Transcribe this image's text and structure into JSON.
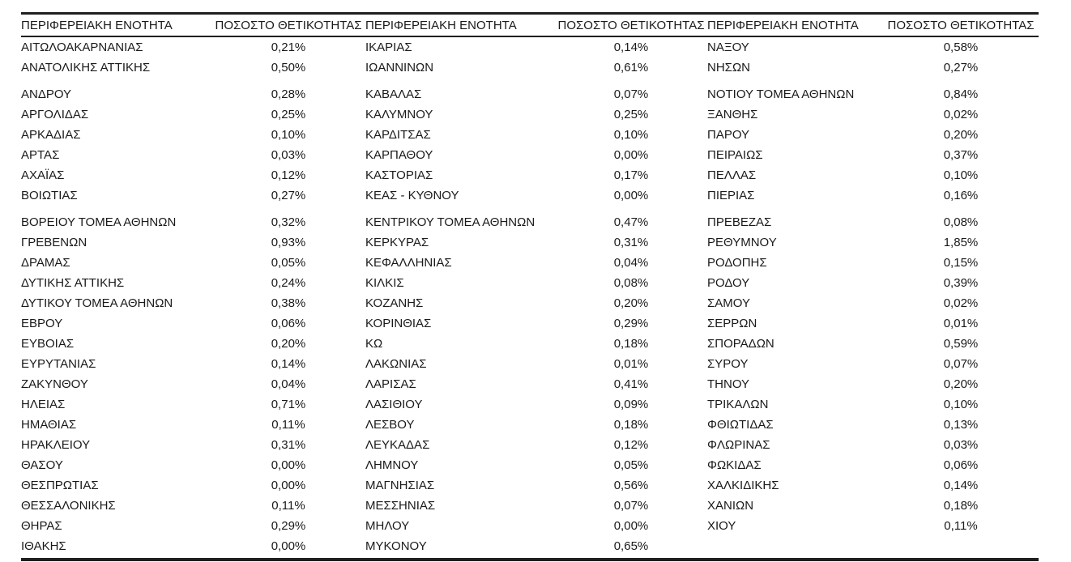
{
  "table": {
    "header": {
      "region": "ΠΕΡΙΦΕΡΕΙΑΚΗ ΕΝΟΤΗΤΑ",
      "value": "ΠΟΣΟΣΤΟ ΘΕΤΙΚΟΤΗΤΑΣ"
    },
    "gap_rows": [
      2,
      8
    ],
    "columns": [
      {
        "rows": [
          {
            "region": "ΑΙΤΩΛΟΑΚΑΡΝΑΝΙΑΣ",
            "value": "0,21%"
          },
          {
            "region": "ΑΝΑΤΟΛΙΚΗΣ ΑΤΤΙΚΗΣ",
            "value": "0,50%"
          },
          {
            "region": "ΑΝΔΡΟΥ",
            "value": "0,28%"
          },
          {
            "region": "ΑΡΓΟΛΙΔΑΣ",
            "value": "0,25%"
          },
          {
            "region": "ΑΡΚΑΔΙΑΣ",
            "value": "0,10%"
          },
          {
            "region": "ΑΡΤΑΣ",
            "value": "0,03%"
          },
          {
            "region": "ΑΧΑΪΑΣ",
            "value": "0,12%"
          },
          {
            "region": "ΒΟΙΩΤΙΑΣ",
            "value": "0,27%"
          },
          {
            "region": "ΒΟΡΕΙΟΥ ΤΟΜΕΑ ΑΘΗΝΩΝ",
            "value": "0,32%"
          },
          {
            "region": "ΓΡΕΒΕΝΩΝ",
            "value": "0,93%"
          },
          {
            "region": "ΔΡΑΜΑΣ",
            "value": "0,05%"
          },
          {
            "region": "ΔΥΤΙΚΗΣ ΑΤΤΙΚΗΣ",
            "value": "0,24%"
          },
          {
            "region": "ΔΥΤΙΚΟΥ ΤΟΜΕΑ ΑΘΗΝΩΝ",
            "value": "0,38%"
          },
          {
            "region": "ΕΒΡΟΥ",
            "value": "0,06%"
          },
          {
            "region": "ΕΥΒΟΙΑΣ",
            "value": "0,20%"
          },
          {
            "region": "ΕΥΡΥΤΑΝΙΑΣ",
            "value": "0,14%"
          },
          {
            "region": "ΖΑΚΥΝΘΟΥ",
            "value": "0,04%"
          },
          {
            "region": "ΗΛΕΙΑΣ",
            "value": "0,71%"
          },
          {
            "region": "ΗΜΑΘΙΑΣ",
            "value": "0,11%"
          },
          {
            "region": "ΗΡΑΚΛΕΙΟΥ",
            "value": "0,31%"
          },
          {
            "region": "ΘΑΣΟΥ",
            "value": "0,00%"
          },
          {
            "region": "ΘΕΣΠΡΩΤΙΑΣ",
            "value": "0,00%"
          },
          {
            "region": "ΘΕΣΣΑΛΟΝΙΚΗΣ",
            "value": "0,11%"
          },
          {
            "region": "ΘΗΡΑΣ",
            "value": "0,29%"
          },
          {
            "region": "ΙΘΑΚΗΣ",
            "value": "0,00%"
          }
        ]
      },
      {
        "rows": [
          {
            "region": "ΙΚΑΡΙΑΣ",
            "value": "0,14%"
          },
          {
            "region": "ΙΩΑΝΝΙΝΩΝ",
            "value": "0,61%"
          },
          {
            "region": "ΚΑΒΑΛΑΣ",
            "value": "0,07%"
          },
          {
            "region": "ΚΑΛΥΜΝΟΥ",
            "value": "0,25%"
          },
          {
            "region": "ΚΑΡΔΙΤΣΑΣ",
            "value": "0,10%"
          },
          {
            "region": "ΚΑΡΠΑΘΟΥ",
            "value": "0,00%"
          },
          {
            "region": "ΚΑΣΤΟΡΙΑΣ",
            "value": "0,17%"
          },
          {
            "region": "ΚΕΑΣ - ΚΥΘΝΟΥ",
            "value": "0,00%"
          },
          {
            "region": "ΚΕΝΤΡΙΚΟΥ ΤΟΜΕΑ ΑΘΗΝΩΝ",
            "value": "0,47%"
          },
          {
            "region": "ΚΕΡΚΥΡΑΣ",
            "value": "0,31%"
          },
          {
            "region": "ΚΕΦΑΛΛΗΝΙΑΣ",
            "value": "0,04%"
          },
          {
            "region": "ΚΙΛΚΙΣ",
            "value": "0,08%"
          },
          {
            "region": "ΚΟΖΑΝΗΣ",
            "value": "0,20%"
          },
          {
            "region": "ΚΟΡΙΝΘΙΑΣ",
            "value": "0,29%"
          },
          {
            "region": "ΚΩ",
            "value": "0,18%"
          },
          {
            "region": "ΛΑΚΩΝΙΑΣ",
            "value": "0,01%"
          },
          {
            "region": "ΛΑΡΙΣΑΣ",
            "value": "0,41%"
          },
          {
            "region": "ΛΑΣΙΘΙΟΥ",
            "value": "0,09%"
          },
          {
            "region": "ΛΕΣΒΟΥ",
            "value": "0,18%"
          },
          {
            "region": "ΛΕΥΚΑΔΑΣ",
            "value": "0,12%"
          },
          {
            "region": "ΛΗΜΝΟΥ",
            "value": "0,05%"
          },
          {
            "region": "ΜΑΓΝΗΣΙΑΣ",
            "value": "0,56%"
          },
          {
            "region": "ΜΕΣΣΗΝΙΑΣ",
            "value": "0,07%"
          },
          {
            "region": "ΜΗΛΟΥ",
            "value": "0,00%"
          },
          {
            "region": "ΜΥΚΟΝΟΥ",
            "value": "0,65%"
          }
        ]
      },
      {
        "rows": [
          {
            "region": "ΝΑΞΟΥ",
            "value": "0,58%"
          },
          {
            "region": "ΝΗΣΩΝ",
            "value": "0,27%"
          },
          {
            "region": "ΝΟΤΙΟΥ ΤΟΜΕΑ ΑΘΗΝΩΝ",
            "value": "0,84%"
          },
          {
            "region": "ΞΑΝΘΗΣ",
            "value": "0,02%"
          },
          {
            "region": "ΠΑΡΟΥ",
            "value": "0,20%"
          },
          {
            "region": "ΠΕΙΡΑΙΩΣ",
            "value": "0,37%"
          },
          {
            "region": "ΠΕΛΛΑΣ",
            "value": "0,10%"
          },
          {
            "region": "ΠΙΕΡΙΑΣ",
            "value": "0,16%"
          },
          {
            "region": "ΠΡΕΒΕΖΑΣ",
            "value": "0,08%"
          },
          {
            "region": "ΡΕΘΥΜΝΟΥ",
            "value": "1,85%"
          },
          {
            "region": "ΡΟΔΟΠΗΣ",
            "value": "0,15%"
          },
          {
            "region": "ΡΟΔΟΥ",
            "value": "0,39%"
          },
          {
            "region": "ΣΑΜΟΥ",
            "value": "0,02%"
          },
          {
            "region": "ΣΕΡΡΩΝ",
            "value": "0,01%"
          },
          {
            "region": "ΣΠΟΡΑΔΩΝ",
            "value": "0,59%"
          },
          {
            "region": "ΣΥΡΟΥ",
            "value": "0,07%"
          },
          {
            "region": "ΤΗΝΟΥ",
            "value": "0,20%"
          },
          {
            "region": "ΤΡΙΚΑΛΩΝ",
            "value": "0,10%"
          },
          {
            "region": "ΦΘΙΩΤΙΔΑΣ",
            "value": "0,13%"
          },
          {
            "region": "ΦΛΩΡΙΝΑΣ",
            "value": "0,03%"
          },
          {
            "region": "ΦΩΚΙΔΑΣ",
            "value": "0,06%"
          },
          {
            "region": "ΧΑΛΚΙΔΙΚΗΣ",
            "value": "0,14%"
          },
          {
            "region": "ΧΑΝΙΩΝ",
            "value": "0,18%"
          },
          {
            "region": "ΧΙΟΥ",
            "value": "0,11%"
          }
        ]
      }
    ]
  },
  "colors": {
    "text": "#1a1a1a",
    "rule": "#1f1f1f",
    "background": "#ffffff"
  }
}
